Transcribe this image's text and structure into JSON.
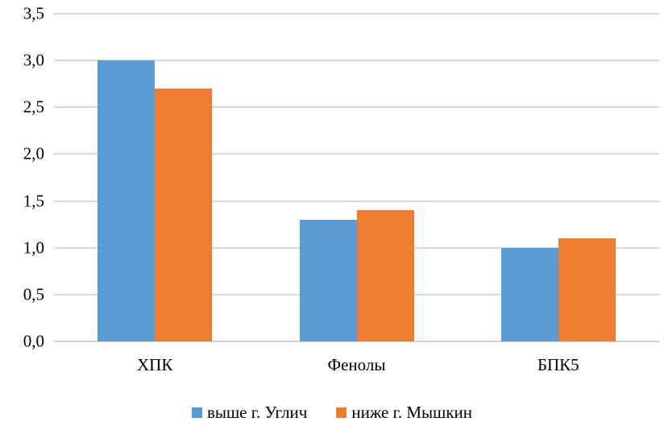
{
  "chart_data": {
    "type": "bar",
    "categories": [
      "ХПК",
      "Фенолы",
      "БПК5"
    ],
    "series": [
      {
        "name": "выше г. Углич",
        "color": "#5B9BD5",
        "values": [
          3.0,
          1.3,
          1.0
        ]
      },
      {
        "name": "ниже г. Мышкин",
        "color": "#ED7D31",
        "values": [
          2.7,
          1.4,
          1.1
        ]
      }
    ],
    "title": "",
    "xlabel": "",
    "ylabel": "",
    "ylim": [
      0,
      3.5
    ],
    "ytick_step": 0.5,
    "ytick_labels": [
      "0,0",
      "0,5",
      "1,0",
      "1,5",
      "2,0",
      "2,5",
      "3,0",
      "3,5"
    ],
    "grid": true,
    "legend_position": "bottom",
    "colors": {
      "gridline": "#d9d9d9",
      "text": "#000000",
      "background": "#ffffff"
    }
  }
}
